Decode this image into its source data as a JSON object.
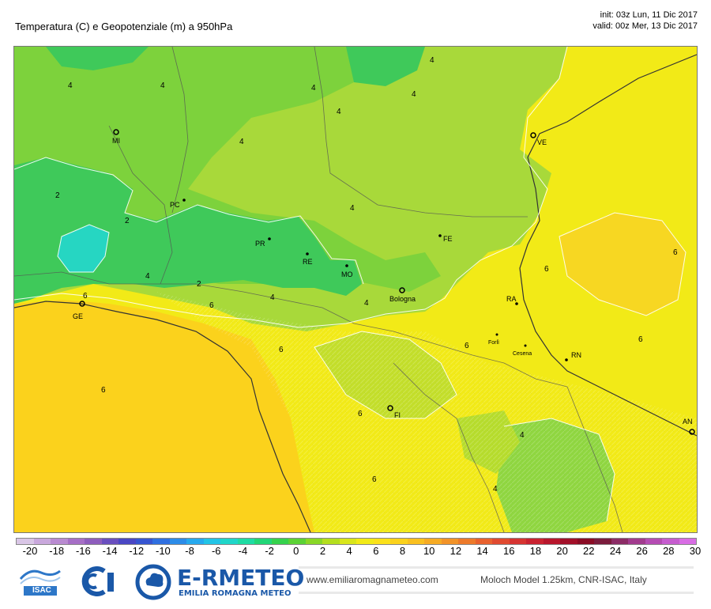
{
  "header": {
    "title": "Temperatura (C) e Geopotenziale (m) a 950hPa",
    "init": "init: 03z Lun, 11 Dic 2017",
    "valid": "valid: 00z Mer, 13 Dic 2017"
  },
  "cities": [
    {
      "code": "MI"
    },
    {
      "code": "VE"
    },
    {
      "code": "PC"
    },
    {
      "code": "FE"
    },
    {
      "code": "PR"
    },
    {
      "code": "RE"
    },
    {
      "code": "MO"
    },
    {
      "code": "Bologna"
    },
    {
      "code": "RA"
    },
    {
      "code": "Forlì"
    },
    {
      "code": "Cesena"
    },
    {
      "code": "RN"
    },
    {
      "code": "GE"
    },
    {
      "code": "FI"
    },
    {
      "code": "AN"
    }
  ],
  "contour_labels": [
    "4",
    "4",
    "4",
    "4",
    "4",
    "4",
    "4",
    "2",
    "2",
    "2",
    "4",
    "4",
    "4",
    "4",
    "6",
    "6",
    "6",
    "6",
    "6",
    "6",
    "6",
    "6",
    "6",
    "6",
    "4",
    "4"
  ],
  "colorbar": {
    "ticks": [
      "-20",
      "-18",
      "-16",
      "-14",
      "-12",
      "-10",
      "-8",
      "-6",
      "-4",
      "-2",
      "0",
      "2",
      "4",
      "6",
      "8",
      "10",
      "12",
      "14",
      "16",
      "18",
      "20",
      "22",
      "24",
      "26",
      "28",
      "30"
    ],
    "colors": [
      "#d9c6e6",
      "#c9a8dc",
      "#b98bd1",
      "#a66fc6",
      "#8e5dbd",
      "#6a4fbf",
      "#4a47c4",
      "#3655d1",
      "#2f6fe0",
      "#2c8ce8",
      "#26a9ee",
      "#22c4e6",
      "#20d6c9",
      "#1fdca3",
      "#22d677",
      "#35d24d",
      "#5bd235",
      "#89d726",
      "#b4de1e",
      "#d9e61b",
      "#f2ea17",
      "#fbe11a",
      "#fbd21c",
      "#f9c020",
      "#f6ab24",
      "#f29328",
      "#ed7a2b",
      "#e8612e",
      "#e04a30",
      "#d63431",
      "#c92230",
      "#b8162c",
      "#a20f28",
      "#8a0b24",
      "#7a1b3c",
      "#8c2c66",
      "#a23b8e",
      "#b54cb3",
      "#c65dcf",
      "#d86de4"
    ]
  },
  "footer": {
    "logo_isac": "ISAC",
    "brand": "E-RMETEO",
    "brand_sub": "EMILIA ROMAGNA METEO",
    "url": "www.emiliaromagnameteo.com",
    "credit": "Moloch Model 1.25km, CNR-ISAC, Italy"
  }
}
